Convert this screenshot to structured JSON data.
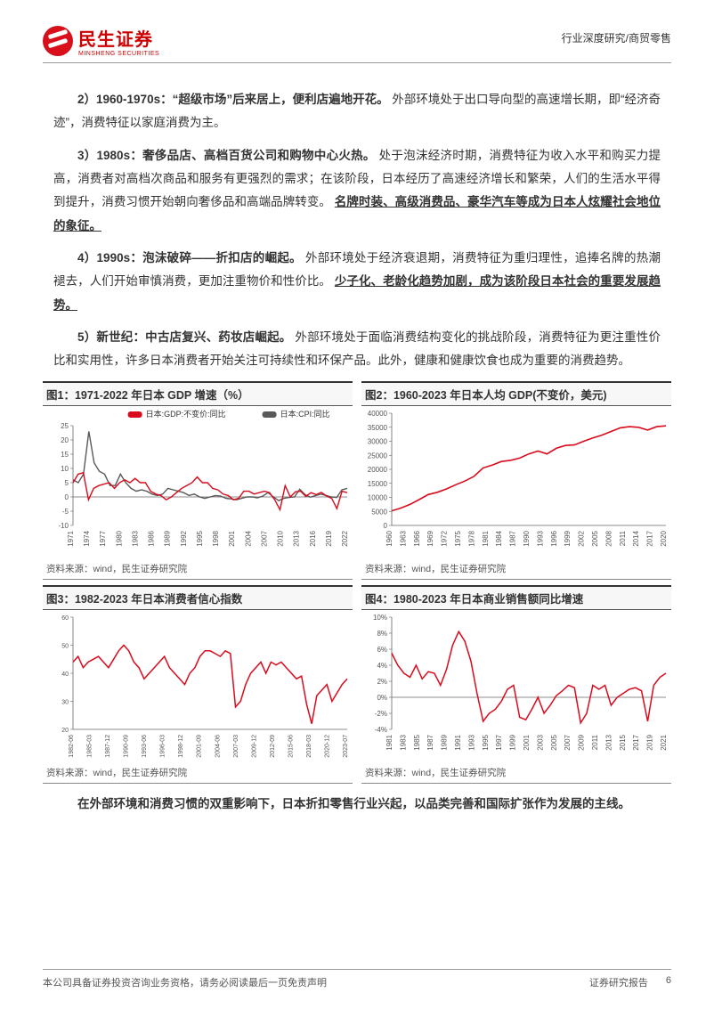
{
  "header": {
    "company_zh": "民生证券",
    "company_en": "MINSHENG SECURITIES",
    "category": "行业深度研究/商贸零售"
  },
  "paragraphs": {
    "p2_lead": "2）1960-1970s：“超级市场”后来居上，便利店遍地开花。",
    "p2_rest": "外部环境处于出口导向型的高速增长期，即“经济奇迹”，消费特征以家庭消费为主。",
    "p3_lead": "3）1980s：奢侈品店、高档百货公司和购物中心火热。",
    "p3_rest": "处于泡沫经济时期，消费特征为收入水平和购买力提高，消费者对高档次商品和服务有更强烈的需求；在该阶段，日本经历了高速经济增长和繁荣，人们的生活水平得到提升，消费习惯开始朝向奢侈品和高端品牌转变。",
    "p3_uline": "名牌时装、高级消费品、豪华汽车等成为日本人炫耀社会地位的象征。",
    "p4_lead": "4）1990s：泡沫破碎——折扣店的崛起。",
    "p4_rest": "外部环境处于经济衰退期，消费特征为重归理性，追捧名牌的热潮褪去，人们开始审慎消费，更加注重物价和性价比。",
    "p4_uline": "少子化、老龄化趋势加剧，成为该阶段日本社会的重要发展趋势。",
    "p5_lead": "5）新世纪：中古店复兴、药妆店崛起。",
    "p5_rest": "外部环境处于面临消费结构变化的挑战阶段，消费特征为更注重性价比和实用性，许多日本消费者开始关注可持续性和环保产品。此外，健康和健康饮食也成为重要的消费趋势。"
  },
  "closing": {
    "text1": "在外部环境和消费习惯的双重影响下，日本折扣零售行业兴起，以品类完善和国际扩张作为发展的主线。"
  },
  "chart1": {
    "title": "图1：1971-2022 年日本 GDP 增速（%）",
    "type": "line",
    "source": "资料来源：wind，民生证券研究院",
    "legend": [
      {
        "label": "日本:GDP:不变价:同比",
        "color": "#d90b1c"
      },
      {
        "label": "日本:CPI:同比",
        "color": "#595959"
      }
    ],
    "xlabels": [
      "1971",
      "1974",
      "1977",
      "1980",
      "1983",
      "1986",
      "1989",
      "1992",
      "1995",
      "1998",
      "2001",
      "2004",
      "2007",
      "2010",
      "2013",
      "2016",
      "2019",
      "2022"
    ],
    "ylim": [
      -10,
      25
    ],
    "ytick_step": 5,
    "series": {
      "gdp": [
        5,
        8,
        8.5,
        -1,
        3,
        4,
        4.5,
        5,
        3,
        5,
        6,
        5,
        6.5,
        5,
        5,
        2,
        1,
        0.5,
        -1,
        0,
        1.5,
        3,
        4,
        5,
        7,
        5,
        5,
        3,
        2.5,
        1,
        0.5,
        -1,
        -0.5,
        2,
        2,
        1,
        1.5,
        2,
        1.5,
        -1,
        -4.5,
        4,
        0,
        1.8,
        2,
        0.2,
        1.5,
        0.8,
        1.6,
        0.3,
        -0.5,
        -4.1,
        2,
        1.5
      ],
      "cpi": [
        6,
        5,
        8,
        23,
        12,
        9,
        8,
        4,
        4,
        8,
        5,
        3,
        2,
        2.5,
        2,
        1,
        0.5,
        1,
        3,
        2.5,
        2,
        1.5,
        0.5,
        1,
        0,
        -0.5,
        0,
        0.5,
        0.3,
        -0.5,
        -0.7,
        -1,
        -0.5,
        0,
        0,
        -0.3,
        0.3,
        1.5,
        0,
        -1.3,
        -0.5,
        -0.2,
        0,
        2.7,
        0.8,
        -0.1,
        0.5,
        1,
        0.5,
        0,
        -0.2,
        2.5,
        3
      ]
    },
    "axis_color": "#666666",
    "label_fontsize": 8,
    "line_width": 1.4
  },
  "chart2": {
    "title": "图2：1960-2023 年日本人均 GDP(不变价，美元)",
    "type": "line",
    "source": "资料来源：wind，民生证券研究院",
    "xlabels": [
      "1960",
      "1963",
      "1966",
      "1969",
      "1972",
      "1975",
      "1978",
      "1981",
      "1984",
      "1987",
      "1990",
      "1993",
      "1996",
      "1999",
      "2002",
      "2005",
      "2008",
      "2011",
      "2014",
      "2017",
      "2020"
    ],
    "ylim": [
      0,
      40000
    ],
    "ytick_step": 5000,
    "color": "#d90b1c",
    "series": [
      5200,
      6200,
      7500,
      9200,
      11000,
      11800,
      13000,
      14500,
      15800,
      17500,
      20500,
      21500,
      22800,
      23200,
      24000,
      25500,
      26500,
      25500,
      27500,
      28500,
      28700,
      30000,
      31200,
      32200,
      33500,
      34800,
      35200,
      35000,
      34000,
      35200,
      35500
    ],
    "axis_color": "#666666",
    "label_fontsize": 8,
    "line_width": 1.6
  },
  "chart3": {
    "title": "图3：1982-2023 年日本消费者信心指数",
    "type": "line",
    "source": "资料来源：wind，民生证券研究院",
    "xlabels": [
      "1982-06",
      "1985-03",
      "1987-12",
      "1990-09",
      "1993-06",
      "1996-03",
      "1998-12",
      "2001-09",
      "2004-06",
      "2007-03",
      "2009-12",
      "2012-09",
      "2015-06",
      "2018-03",
      "2020-12",
      "2023-07"
    ],
    "ylim": [
      20,
      60
    ],
    "ytick_step": 10,
    "color": "#d90b1c",
    "series": [
      44,
      46,
      42,
      44,
      45,
      46,
      44,
      42,
      45,
      48,
      50,
      48,
      44,
      42,
      38,
      40,
      42,
      44,
      46,
      42,
      40,
      38,
      36,
      40,
      42,
      46,
      48,
      48,
      47,
      46,
      48,
      47,
      28,
      30,
      36,
      40,
      42,
      44,
      40,
      44,
      43,
      44,
      42,
      40,
      38,
      39,
      29,
      22,
      32,
      34,
      36,
      30,
      33,
      36,
      38
    ],
    "axis_color": "#666666",
    "label_fontsize": 7,
    "line_width": 1.5
  },
  "chart4": {
    "title": "图4：1980-2023 年日本商业销售额同比增速",
    "type": "line",
    "source": "资料来源：wind，民生证券研究院",
    "xlabels": [
      "1981",
      "1983",
      "1985",
      "1987",
      "1989",
      "1991",
      "1993",
      "1995",
      "1997",
      "1999",
      "2001",
      "2003",
      "2005",
      "2007",
      "2009",
      "2011",
      "2013",
      "2015",
      "2017",
      "2019",
      "2021"
    ],
    "ylim": [
      -4,
      10
    ],
    "ytick_step": 2,
    "ytick_format": "percent",
    "color": "#d90b1c",
    "series": [
      5.5,
      4,
      3,
      2.5,
      4,
      2.3,
      3.2,
      3,
      1.5,
      3.5,
      6.5,
      8.2,
      7,
      4.5,
      0.5,
      -3,
      -2,
      -1.5,
      -0.5,
      1,
      1.5,
      -2.5,
      -2.8,
      -1.5,
      0,
      -2,
      -1,
      0.2,
      0.8,
      1.5,
      1.2,
      -3.2,
      -2,
      1.5,
      1,
      1.5,
      -1,
      0,
      0.5,
      1,
      1.2,
      0.8,
      -3,
      1.5,
      2.5,
      3
    ],
    "axis_color": "#666666",
    "label_fontsize": 8,
    "line_width": 1.5
  },
  "footer": {
    "left": "本公司具备证券投资咨询业务资格，请务必阅读最后一页免责声明",
    "rightA": "证券研究报告",
    "rightB": "6"
  },
  "colors": {
    "brand_red": "#d90b1c",
    "dark_gray": "#595959",
    "text": "#333333",
    "rule": "#999999"
  }
}
